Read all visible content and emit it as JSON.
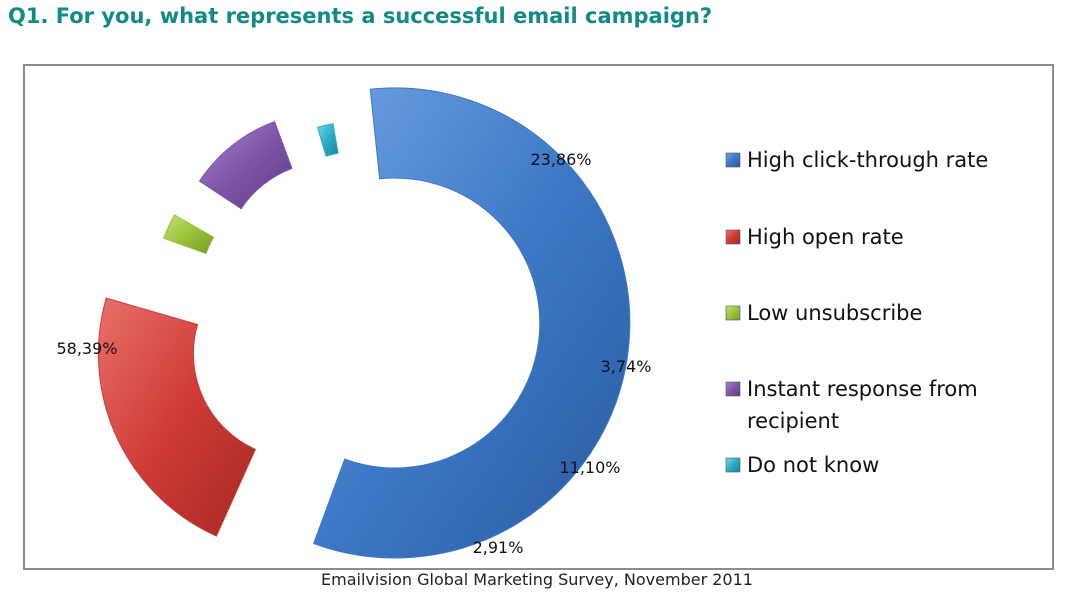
{
  "title": "Q1. For you, what represents a successful email campaign?",
  "source": "Emailvision Global Marketing Survey, November 2011",
  "chart_data": {
    "type": "pie",
    "style": "exploded donut",
    "categories": [
      "High click-through rate",
      "High open rate",
      "Low unsubscribe",
      "Instant response from recipient",
      "Do not know"
    ],
    "values": [
      58.39,
      23.86,
      3.74,
      11.1,
      2.91
    ],
    "value_labels": [
      "58,39%",
      "23,86%",
      "3,74%",
      "11,10%",
      "2,91%"
    ],
    "colors": [
      "#3d78c6",
      "#cf3b37",
      "#99c43a",
      "#7e55a8",
      "#27aec7"
    ],
    "legend_placement": "right",
    "legend_lines": [
      [
        "High click-through rate"
      ],
      [
        "High open rate"
      ],
      [
        "Low unsubscribe"
      ],
      [
        "Instant response from",
        "recipient"
      ],
      [
        "Do not know"
      ]
    ]
  }
}
